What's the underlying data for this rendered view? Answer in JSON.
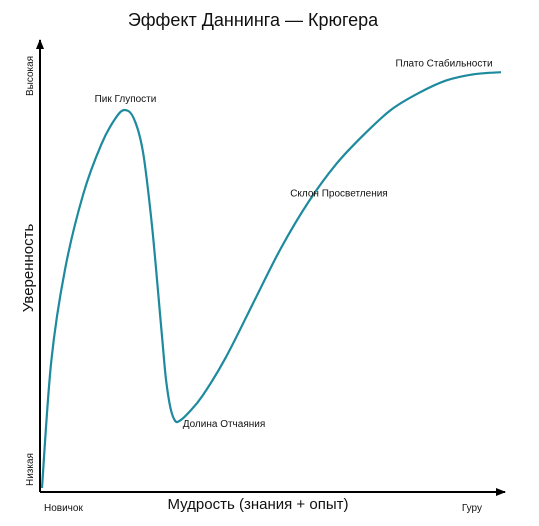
{
  "chart_data": {
    "type": "line",
    "title": "Эффект Даннинга — Крюгера",
    "xlabel": "Мудрость (знания + опыт)",
    "ylabel": "Уверенность",
    "x_tick_labels": [
      "Новичок",
      "Гуру"
    ],
    "y_tick_labels": [
      "Низкая",
      "Высокая"
    ],
    "xlim": [
      0,
      100
    ],
    "ylim": [
      0,
      100
    ],
    "grid": false,
    "series": [
      {
        "color": "#1d8a9e",
        "x": [
          0,
          2,
          5,
          9,
          13,
          16,
          18,
          20,
          22,
          24,
          26,
          27,
          28,
          29,
          30,
          32,
          35,
          40,
          46,
          52,
          58,
          64,
          70,
          76,
          82,
          88,
          94,
          100
        ],
        "y": [
          0,
          30,
          52,
          70,
          82,
          88,
          90,
          88,
          80,
          62,
          38,
          26,
          19,
          16,
          16,
          18,
          22,
          31,
          44,
          57,
          68,
          77,
          84,
          90,
          94,
          97,
          98.5,
          99
        ]
      }
    ],
    "annotations": [
      {
        "text": "Пик Глупости",
        "x": 18,
        "y": 90
      },
      {
        "text": "Долина Отчаяния",
        "x": 30,
        "y": 16
      },
      {
        "text": "Склон Просветления",
        "x": 58,
        "y": 68
      },
      {
        "text": "Плато Стабильности",
        "x": 94,
        "y": 98.5
      }
    ]
  }
}
